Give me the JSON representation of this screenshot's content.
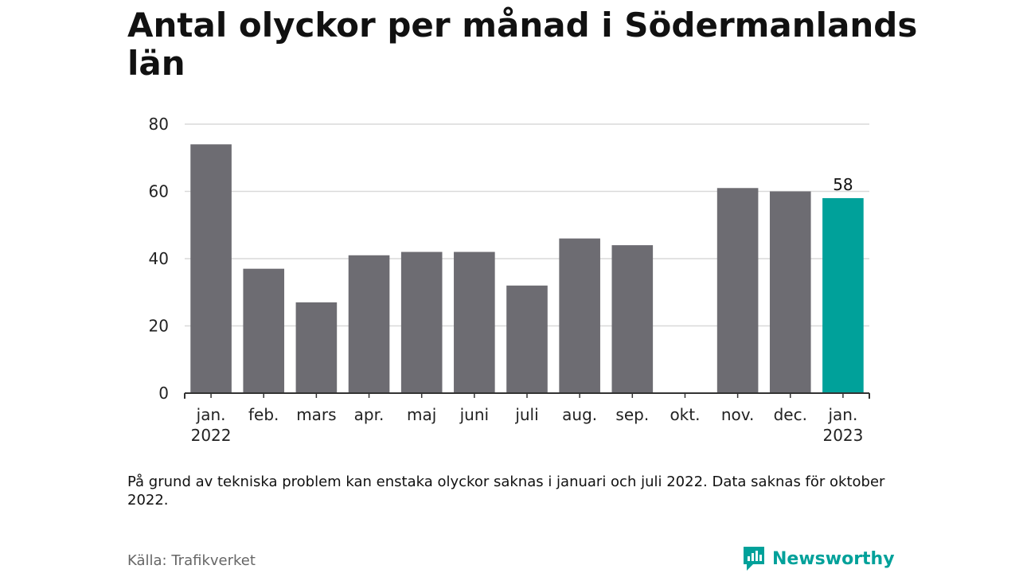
{
  "chart_data": {
    "type": "bar",
    "title": "Antal olyckor per månad i Södermanlands län",
    "categories": [
      [
        "jan.",
        "2022"
      ],
      [
        "feb."
      ],
      [
        "mars"
      ],
      [
        "apr."
      ],
      [
        "maj"
      ],
      [
        "juni"
      ],
      [
        "juli"
      ],
      [
        "aug."
      ],
      [
        "sep."
      ],
      [
        "okt."
      ],
      [
        "nov."
      ],
      [
        "dec."
      ],
      [
        "jan.",
        "2023"
      ]
    ],
    "values": [
      74,
      37,
      27,
      41,
      42,
      42,
      32,
      46,
      44,
      null,
      61,
      60,
      58
    ],
    "highlight_index": 12,
    "highlight_label": "58",
    "yticks": [
      "0",
      "20",
      "40",
      "60",
      "80"
    ],
    "ylim": [
      0,
      80
    ],
    "grid": true,
    "xlabel": "",
    "ylabel": ""
  },
  "colors": {
    "bar": "#6d6c72",
    "highlight": "#00a19a",
    "grid": "#d9d9d9",
    "axis": "#333333"
  },
  "footer": {
    "note": "På grund av tekniska problem kan enstaka olyckor saknas i januari och juli 2022. Data saknas för oktober 2022.",
    "source": "Källa: Trafikverket",
    "brand": "Newsworthy",
    "brand_icon": "newsworthy-logo-icon"
  }
}
